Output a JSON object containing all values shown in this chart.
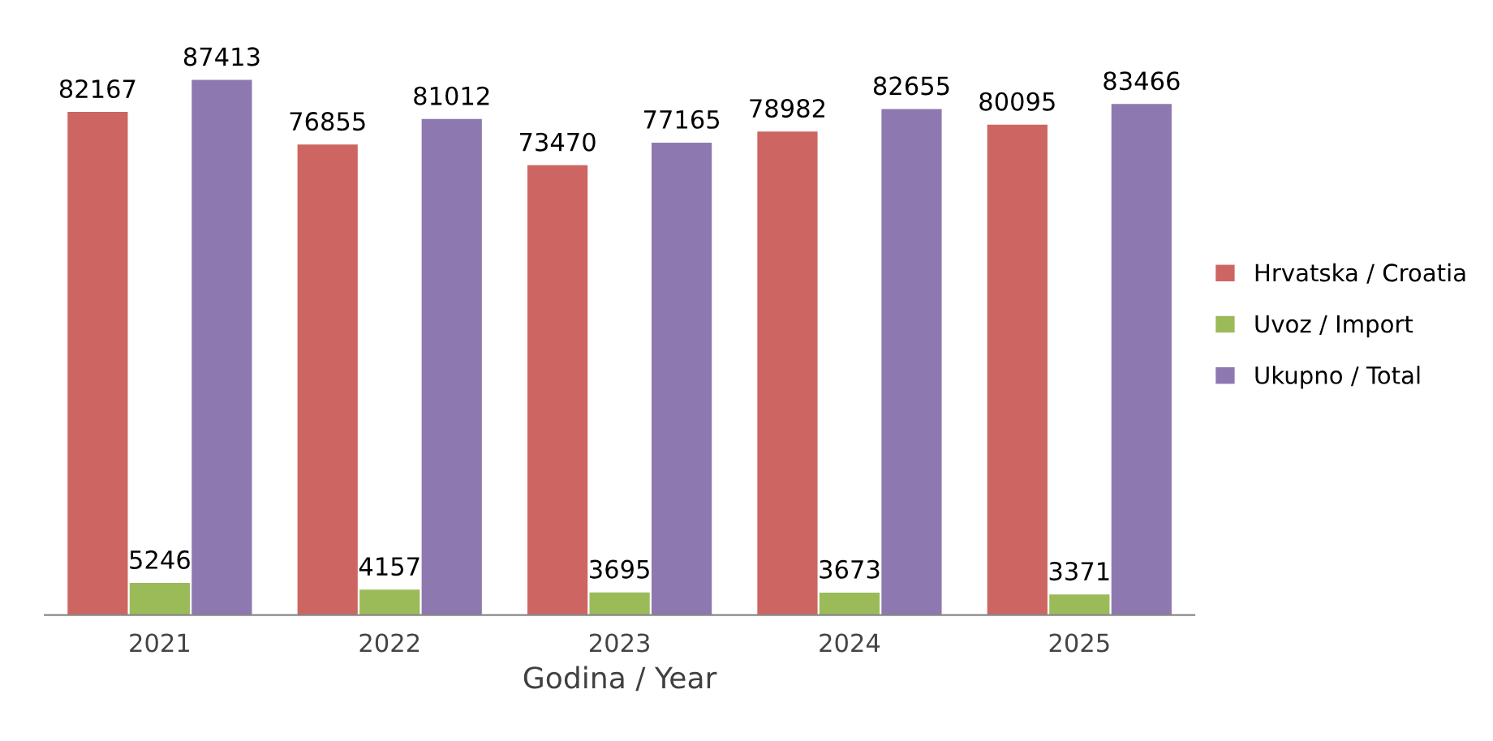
{
  "chart_data": {
    "type": "bar",
    "xlabel": "Godina / Year",
    "categories": [
      "2021",
      "2022",
      "2023",
      "2024",
      "2025"
    ],
    "series": [
      {
        "name": "Hrvatska / Croatia",
        "color": "#cd6662",
        "values": [
          82167,
          76855,
          73470,
          78982,
          80095
        ]
      },
      {
        "name": "Uvoz / Import",
        "color": "#9bbb59",
        "values": [
          5246,
          4157,
          3695,
          3673,
          3371
        ]
      },
      {
        "name": "Ukupno / Total",
        "color": "#8d79b0",
        "values": [
          87413,
          81012,
          77165,
          82655,
          83466
        ]
      }
    ],
    "data_labels": true,
    "legend": "right"
  }
}
